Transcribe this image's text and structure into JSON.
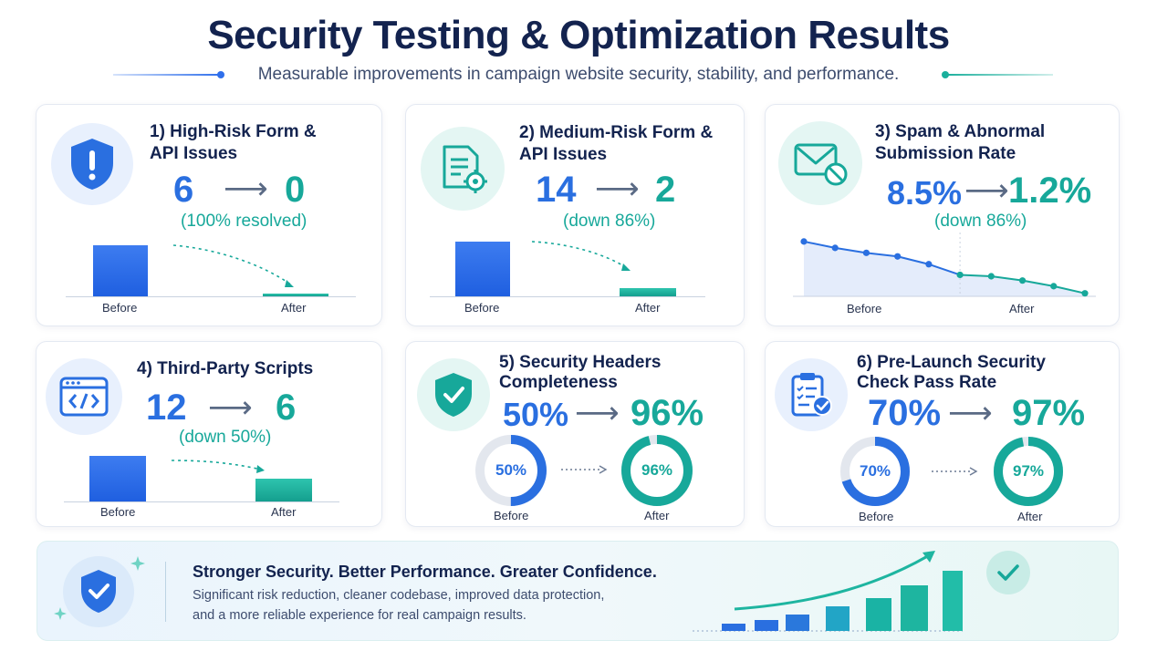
{
  "header": {
    "title": "Security Testing & Optimization Results",
    "subtitle": "Measurable improvements in campaign website security, stability, and performance."
  },
  "colors": {
    "blue": "#2a6fe0",
    "teal": "#17a89a",
    "navy": "#13234f"
  },
  "cards": [
    {
      "title_line1": "1) High-Risk Form &",
      "title_line2": "API Issues",
      "before": "6",
      "after": "0",
      "note": "(100% resolved)",
      "before_label": "Before",
      "after_label": "After",
      "icon": "shield-alert-icon"
    },
    {
      "title_line1": "2) Medium-Risk Form &",
      "title_line2": "API Issues",
      "before": "14",
      "after": "2",
      "note": "(down 86%)",
      "before_label": "Before",
      "after_label": "After",
      "icon": "document-gear-icon"
    },
    {
      "title_line1": "3) Spam & Abnormal",
      "title_line2": "Submission Rate",
      "before": "8.5%",
      "after": "1.2%",
      "note": "(down 86%)",
      "before_label": "Before",
      "after_label": "After",
      "icon": "mail-blocked-icon"
    },
    {
      "title_line1": "4) Third-Party Scripts",
      "before": "12",
      "after": "6",
      "note": "(down 50%)",
      "before_label": "Before",
      "after_label": "After",
      "icon": "code-window-icon"
    },
    {
      "title_line1": "5) Security Headers",
      "title_line2": "Completeness",
      "before": "50%",
      "after": "96%",
      "before_label": "Before",
      "after_label": "After",
      "icon": "shield-check-icon"
    },
    {
      "title_line1": "6) Pre-Launch Security",
      "title_line2": "Check Pass Rate",
      "before": "70%",
      "after": "97%",
      "before_label": "Before",
      "after_label": "After",
      "icon": "clipboard-check-icon"
    }
  ],
  "chart_data": [
    {
      "type": "bar",
      "categories": [
        "Before",
        "After"
      ],
      "values": [
        6,
        0
      ]
    },
    {
      "type": "bar",
      "categories": [
        "Before",
        "After"
      ],
      "values": [
        14,
        2
      ]
    },
    {
      "type": "line",
      "values": [
        8.5,
        7.6,
        6.9,
        6.4,
        5.3,
        3.8,
        3.6,
        3.0,
        2.2,
        1.2
      ],
      "x_labels": [
        "Before",
        "After"
      ]
    },
    {
      "type": "bar",
      "categories": [
        "Before",
        "After"
      ],
      "values": [
        12,
        6
      ]
    },
    {
      "type": "pie",
      "categories": [
        "Before",
        "After"
      ],
      "values": [
        50,
        96
      ]
    },
    {
      "type": "pie",
      "categories": [
        "Before",
        "After"
      ],
      "values": [
        70,
        97
      ]
    }
  ],
  "banner": {
    "title": "Stronger Security. Better Performance. Greater Confidence.",
    "line1": "Significant risk reduction, cleaner codebase, improved data protection,",
    "line2": "and a more reliable experience for real campaign results."
  }
}
